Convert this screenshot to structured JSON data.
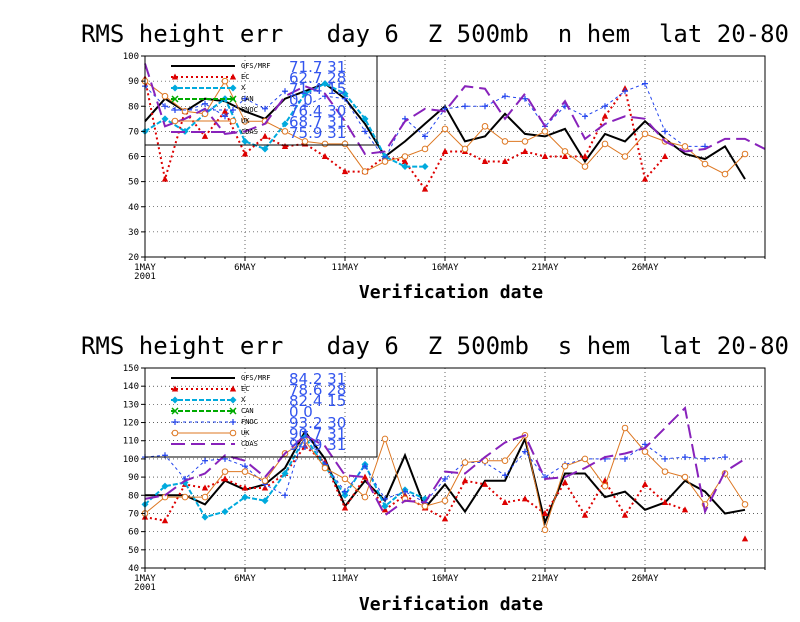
{
  "chart_data": [
    {
      "type": "line",
      "title": "RMS height err   day 6  Z 500mb  n hem  lat 20-80",
      "xlabel": "Verification date",
      "year_label": "2001",
      "ylim": [
        20,
        100
      ],
      "y_ticks": [
        20,
        30,
        40,
        50,
        60,
        70,
        80,
        90,
        100
      ],
      "xlim": [
        1,
        32
      ],
      "x_ticks": [
        1,
        6,
        11,
        16,
        21,
        26
      ],
      "x_tick_labels": [
        "1MAY",
        "6MAY",
        "11MAY",
        "16MAY",
        "21MAY",
        "26MAY"
      ],
      "grid": true,
      "legend_position": "top-left",
      "series": [
        {
          "name": "GFS/MRF",
          "stat": "71.7 31",
          "color": "#000000",
          "x": [
            1,
            2,
            3,
            4,
            5,
            6,
            7,
            8,
            9,
            10,
            11,
            12,
            13,
            14,
            15,
            16,
            17,
            18,
            19,
            20,
            21,
            22,
            23,
            24,
            25,
            26,
            27,
            28,
            29,
            30,
            31,
            32
          ],
          "y": [
            74,
            83,
            78,
            83,
            82,
            78,
            75,
            83,
            86,
            89,
            83,
            73,
            60,
            66,
            73,
            80,
            66,
            68,
            77,
            69,
            68,
            71,
            58,
            69,
            66,
            74,
            67,
            61,
            59,
            64,
            51,
            null
          ]
        },
        {
          "name": "EC",
          "stat": "62.7 28",
          "color": "#dd0000",
          "x": [
            1,
            2,
            3,
            4,
            5,
            6,
            7,
            8,
            9,
            10,
            11,
            12,
            13,
            14,
            15,
            16,
            17,
            18,
            19,
            20,
            21,
            22,
            23,
            24,
            25,
            26,
            27,
            28,
            29,
            30,
            31,
            32
          ],
          "y": [
            91,
            51,
            78,
            68,
            78,
            61,
            68,
            64,
            65,
            60,
            54,
            54,
            60,
            58,
            47,
            62,
            62,
            58,
            58,
            62,
            60,
            60,
            60,
            76,
            87,
            51,
            60,
            null,
            null,
            null,
            null,
            null
          ]
        },
        {
          "name": "X",
          "stat": "71.4 15",
          "color": "#00aadd",
          "x": [
            1,
            2,
            3,
            4,
            5,
            6,
            7,
            8,
            9,
            10,
            11,
            12,
            13,
            14,
            15
          ],
          "y": [
            70,
            75,
            70,
            77,
            83,
            66,
            63,
            73,
            85,
            89,
            85,
            75,
            60,
            56,
            56
          ]
        },
        {
          "name": "CAN",
          "stat": "0 0",
          "color": "#00aa00",
          "x": [],
          "y": []
        },
        {
          "name": "FNOC",
          "stat": "76.4 30",
          "color": "#2244ee",
          "x": [
            1,
            2,
            3,
            4,
            5,
            6,
            7,
            8,
            9,
            10,
            11,
            12,
            13,
            14,
            15,
            16,
            17,
            18,
            19,
            20,
            21,
            22,
            23,
            24,
            25,
            26,
            27,
            28,
            29,
            30,
            31,
            32
          ],
          "y": [
            88,
            80,
            78,
            81,
            76,
            83,
            79,
            86,
            80,
            84,
            83,
            70,
            59,
            75,
            68,
            79,
            80,
            80,
            84,
            83,
            72,
            80,
            76,
            80,
            86,
            89,
            70,
            64,
            64,
            null,
            null,
            null
          ]
        },
        {
          "name": "UK",
          "stat": "68.7 31",
          "color": "#dd7722",
          "x": [
            1,
            2,
            3,
            4,
            5,
            6,
            7,
            8,
            9,
            10,
            11,
            12,
            13,
            14,
            15,
            16,
            17,
            18,
            19,
            20,
            21,
            22,
            23,
            24,
            25,
            26,
            27,
            28,
            29,
            30,
            31,
            32
          ],
          "y": [
            90,
            84,
            78,
            77,
            90,
            74,
            74,
            70,
            66,
            65,
            65,
            54,
            58,
            60,
            63,
            71,
            63,
            72,
            66,
            66,
            70,
            62,
            56,
            65,
            60,
            69,
            66,
            64,
            57,
            53,
            61,
            null
          ]
        },
        {
          "name": "CDAS",
          "stat": "75.9 31",
          "color": "#8822bb",
          "x": [
            1,
            2,
            3,
            4,
            5,
            6,
            7,
            8,
            9,
            10,
            11,
            12,
            13,
            14,
            15,
            16,
            17,
            18,
            19,
            20,
            21,
            22,
            23,
            24,
            25,
            26,
            27,
            28,
            29,
            30,
            31,
            32
          ],
          "y": [
            97,
            72,
            75,
            79,
            69,
            70,
            73,
            84,
            88,
            85,
            74,
            61,
            62,
            74,
            79,
            78,
            88,
            87,
            75,
            85,
            72,
            82,
            67,
            73,
            76,
            75,
            66,
            62,
            63,
            67,
            67,
            63
          ]
        }
      ]
    },
    {
      "type": "line",
      "title": "RMS height err   day 6  Z 500mb  s hem  lat 20-80",
      "xlabel": "Verification date",
      "year_label": "2001",
      "ylim": [
        40,
        150
      ],
      "y_ticks": [
        40,
        50,
        60,
        70,
        80,
        90,
        100,
        110,
        120,
        130,
        140,
        150
      ],
      "xlim": [
        1,
        32
      ],
      "x_ticks": [
        1,
        6,
        11,
        16,
        21,
        26
      ],
      "x_tick_labels": [
        "1MAY",
        "6MAY",
        "11MAY",
        "16MAY",
        "21MAY",
        "26MAY"
      ],
      "grid": true,
      "legend_position": "top-left",
      "series": [
        {
          "name": "GFS/MRF",
          "stat": "84.2 31",
          "color": "#000000",
          "x": [
            1,
            2,
            3,
            4,
            5,
            6,
            7,
            8,
            9,
            10,
            11,
            12,
            13,
            14,
            15,
            16,
            17,
            18,
            19,
            20,
            21,
            22,
            23,
            24,
            25,
            26,
            27,
            28,
            29,
            30,
            31,
            32
          ],
          "y": [
            80,
            80,
            80,
            75,
            88,
            83,
            86,
            95,
            115,
            100,
            74,
            88,
            77,
            102,
            73,
            86,
            71,
            88,
            88,
            111,
            65,
            92,
            92,
            79,
            82,
            72,
            76,
            88,
            82,
            70,
            72,
            null
          ]
        },
        {
          "name": "EC",
          "stat": "78.6 28",
          "color": "#dd0000",
          "x": [
            1,
            2,
            3,
            4,
            5,
            6,
            7,
            8,
            9,
            10,
            11,
            12,
            13,
            14,
            15,
            16,
            17,
            18,
            19,
            20,
            21,
            22,
            23,
            24,
            25,
            26,
            27,
            28,
            29,
            30,
            31,
            32
          ],
          "y": [
            68,
            66,
            86,
            84,
            89,
            84,
            84,
            92,
            107,
            98,
            73,
            90,
            72,
            80,
            73,
            67,
            88,
            86,
            76,
            78,
            70,
            87,
            69,
            88,
            69,
            86,
            76,
            72,
            null,
            null,
            56,
            null
          ]
        },
        {
          "name": "X",
          "stat": "82.4 15",
          "color": "#00aadd",
          "x": [
            1,
            2,
            3,
            4,
            5,
            6,
            7,
            8,
            9,
            10,
            11,
            12,
            13,
            14,
            15
          ],
          "y": [
            75,
            85,
            87,
            68,
            71,
            79,
            77,
            92,
            112,
            96,
            80,
            97,
            74,
            83,
            78
          ]
        },
        {
          "name": "CAN",
          "stat": "0 0",
          "color": "#00aa00",
          "x": [],
          "y": []
        },
        {
          "name": "FNOC",
          "stat": "93.2 30",
          "color": "#2244ee",
          "x": [
            1,
            2,
            3,
            4,
            5,
            6,
            7,
            8,
            9,
            10,
            11,
            12,
            13,
            14,
            15,
            16,
            17,
            18,
            19,
            20,
            21,
            22,
            23,
            24,
            25,
            26,
            27,
            28,
            29,
            30,
            31,
            32
          ],
          "y": [
            101,
            102,
            89,
            99,
            100,
            96,
            86,
            80,
            115,
            97,
            82,
            96,
            78,
            82,
            76,
            89,
            98,
            98,
            91,
            104,
            90,
            97,
            100,
            100,
            100,
            108,
            100,
            101,
            100,
            101,
            null,
            null
          ]
        },
        {
          "name": "UK",
          "stat": "90.7 31",
          "color": "#dd7722",
          "x": [
            1,
            2,
            3,
            4,
            5,
            6,
            7,
            8,
            9,
            10,
            11,
            12,
            13,
            14,
            15,
            16,
            17,
            18,
            19,
            20,
            21,
            22,
            23,
            24,
            25,
            26,
            27,
            28,
            29,
            30,
            31,
            32
          ],
          "y": [
            70,
            79,
            79,
            79,
            93,
            93,
            88,
            103,
            110,
            95,
            89,
            79,
            111,
            78,
            74,
            77,
            98,
            99,
            99,
            113,
            61,
            96,
            100,
            85,
            117,
            104,
            93,
            90,
            75,
            92,
            75,
            null
          ]
        },
        {
          "name": "CDAS",
          "stat": "94.9 31",
          "color": "#8822bb",
          "x": [
            1,
            2,
            3,
            4,
            5,
            6,
            7,
            8,
            9,
            10,
            11,
            12,
            13,
            14,
            15,
            16,
            17,
            18,
            19,
            20,
            21,
            22,
            23,
            24,
            25,
            26,
            27,
            28,
            29,
            30,
            31,
            32
          ],
          "y": [
            78,
            80,
            88,
            92,
            102,
            99,
            90,
            103,
            113,
            107,
            91,
            90,
            69,
            77,
            76,
            93,
            92,
            101,
            109,
            113,
            89,
            90,
            95,
            101,
            103,
            106,
            117,
            128,
            71,
            93,
            100,
            null
          ]
        }
      ]
    }
  ]
}
